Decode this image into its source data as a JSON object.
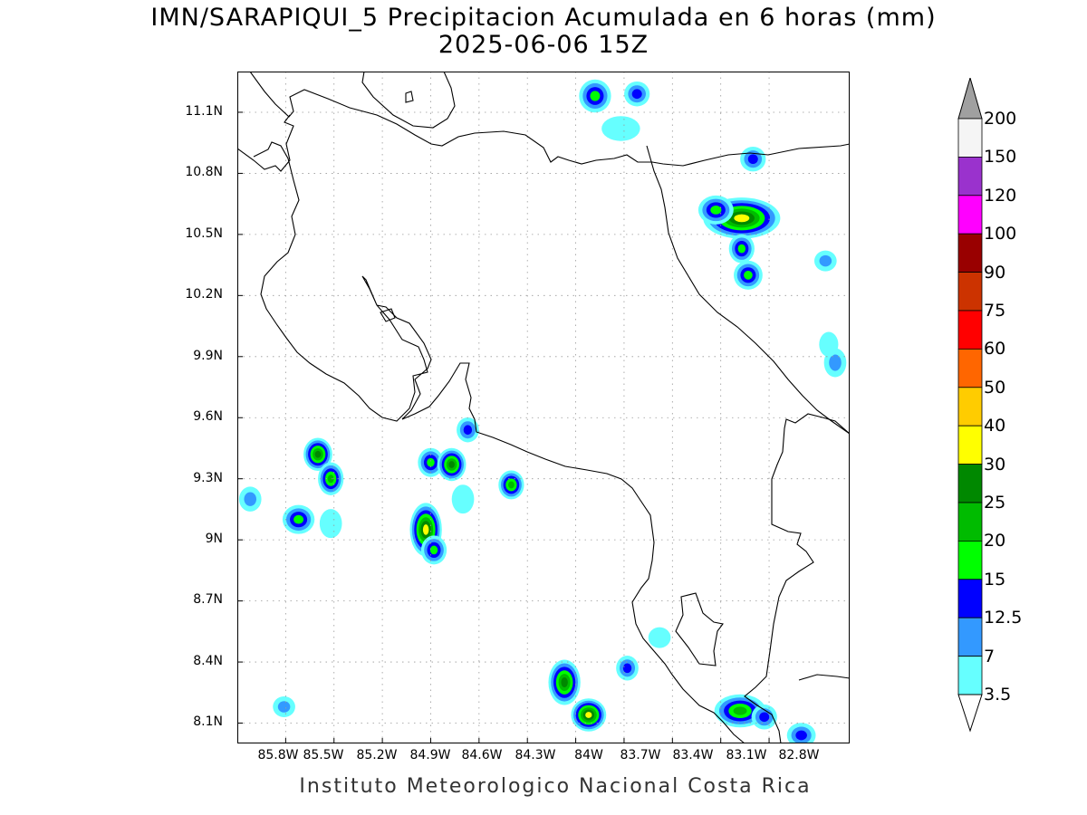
{
  "title_line1": "IMN/SARAPIQUI_5 Precipitacion Acumulada en 6 horas (mm)",
  "title_line2": "2025-06-06 15Z",
  "footer": "Instituto Meteorologico Nacional Costa Rica",
  "y_ticks": [
    "11.1N",
    "10.8N",
    "10.5N",
    "10.2N",
    "9.9N",
    "9.6N",
    "9.3N",
    "9N",
    "8.7N",
    "8.4N",
    "8.1N"
  ],
  "x_ticks": [
    "85.8W",
    "85.5W",
    "85.2W",
    "84.9W",
    "84.6W",
    "84.3W",
    "84W",
    "83.7W",
    "83.4W",
    "83.1W",
    "82.8W"
  ],
  "colorbar": {
    "labels": [
      "200",
      "150",
      "120",
      "100",
      "90",
      "75",
      "60",
      "50",
      "40",
      "30",
      "25",
      "20",
      "15",
      "12.5",
      "7",
      "3.5"
    ],
    "colors": [
      "#f5f5f5",
      "#9a32cd",
      "#ff00ff",
      "#990000",
      "#cc3300",
      "#ff0000",
      "#ff6600",
      "#ffcc00",
      "#ffff00",
      "#008800",
      "#00bb00",
      "#00ff00",
      "#0000ff",
      "#3399ff",
      "#66ffff"
    ],
    "over_color": "#a0a0a0"
  },
  "precip_cells": [
    {
      "lon": -83.88,
      "lat": 11.18,
      "level": 4,
      "rx": 0.06,
      "ry": 0.05
    },
    {
      "lon": -83.62,
      "lat": 11.19,
      "level": 3,
      "rx": 0.04,
      "ry": 0.03
    },
    {
      "lon": -83.72,
      "lat": 11.02,
      "level": 1,
      "rx": 0.08,
      "ry": 0.03
    },
    {
      "lon": -82.97,
      "lat": 10.58,
      "level": 7,
      "rx": 0.2,
      "ry": 0.07
    },
    {
      "lon": -83.13,
      "lat": 10.62,
      "level": 4,
      "rx": 0.07,
      "ry": 0.04
    },
    {
      "lon": -82.97,
      "lat": 10.43,
      "level": 4,
      "rx": 0.04,
      "ry": 0.04
    },
    {
      "lon": -82.93,
      "lat": 10.3,
      "level": 4,
      "rx": 0.05,
      "ry": 0.04
    },
    {
      "lon": -82.9,
      "lat": 10.87,
      "level": 3,
      "rx": 0.04,
      "ry": 0.03
    },
    {
      "lon": -82.45,
      "lat": 10.37,
      "level": 2,
      "rx": 0.03,
      "ry": 0.02
    },
    {
      "lon": -82.39,
      "lat": 9.87,
      "level": 2,
      "rx": 0.03,
      "ry": 0.04
    },
    {
      "lon": -82.43,
      "lat": 9.96,
      "level": 1,
      "rx": 0.02,
      "ry": 0.03
    },
    {
      "lon": -85.6,
      "lat": 9.42,
      "level": 6,
      "rx": 0.05,
      "ry": 0.05
    },
    {
      "lon": -85.52,
      "lat": 9.3,
      "level": 5,
      "rx": 0.04,
      "ry": 0.05
    },
    {
      "lon": -85.72,
      "lat": 9.1,
      "level": 4,
      "rx": 0.06,
      "ry": 0.04
    },
    {
      "lon": -84.93,
      "lat": 9.05,
      "level": 7,
      "rx": 0.06,
      "ry": 0.1
    },
    {
      "lon": -84.88,
      "lat": 8.95,
      "level": 4,
      "rx": 0.04,
      "ry": 0.04
    },
    {
      "lon": -84.9,
      "lat": 9.38,
      "level": 4,
      "rx": 0.04,
      "ry": 0.04
    },
    {
      "lon": -84.77,
      "lat": 9.37,
      "level": 6,
      "rx": 0.05,
      "ry": 0.05
    },
    {
      "lon": -84.4,
      "lat": 9.27,
      "level": 5,
      "rx": 0.04,
      "ry": 0.04
    },
    {
      "lon": -84.67,
      "lat": 9.54,
      "level": 3,
      "rx": 0.03,
      "ry": 0.03
    },
    {
      "lon": -84.07,
      "lat": 8.3,
      "level": 6,
      "rx": 0.06,
      "ry": 0.08
    },
    {
      "lon": -83.92,
      "lat": 8.14,
      "level": 7,
      "rx": 0.07,
      "ry": 0.05
    },
    {
      "lon": -83.68,
      "lat": 8.37,
      "level": 3,
      "rx": 0.03,
      "ry": 0.03
    },
    {
      "lon": -82.98,
      "lat": 8.16,
      "level": 5,
      "rx": 0.12,
      "ry": 0.05
    },
    {
      "lon": -82.83,
      "lat": 8.13,
      "level": 3,
      "rx": 0.04,
      "ry": 0.03
    },
    {
      "lon": -82.6,
      "lat": 8.04,
      "level": 3,
      "rx": 0.05,
      "ry": 0.03
    },
    {
      "lon": -85.81,
      "lat": 8.18,
      "level": 2,
      "rx": 0.03,
      "ry": 0.02
    },
    {
      "lon": -83.48,
      "lat": 8.52,
      "level": 1,
      "rx": 0.03,
      "ry": 0.02
    },
    {
      "lon": -86.02,
      "lat": 9.2,
      "level": 2,
      "rx": 0.03,
      "ry": 0.03
    },
    {
      "lon": -85.52,
      "lat": 9.08,
      "level": 1,
      "rx": 0.03,
      "ry": 0.04
    },
    {
      "lon": -84.7,
      "lat": 9.2,
      "level": 1,
      "rx": 0.03,
      "ry": 0.04
    }
  ]
}
